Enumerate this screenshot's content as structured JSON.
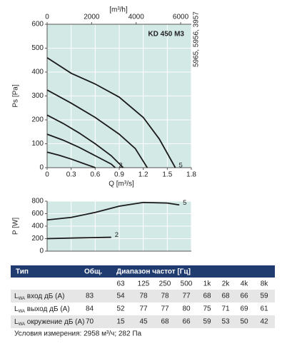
{
  "chart_data": [
    {
      "type": "line",
      "title": "KD 450 M3",
      "note": "5965, 5956, 3957",
      "xlabel": "Q [m³/s]",
      "ylabel": "Ps [Pa]",
      "x2label": "[m³/h]",
      "xlim": [
        0,
        1.8
      ],
      "xticks": [
        0,
        0.3,
        0.6,
        0.9,
        1.2,
        1.5,
        1.8
      ],
      "x2lim": [
        0,
        6480
      ],
      "x2ticks": [
        0,
        2000,
        4000,
        6000
      ],
      "ylim": [
        0,
        600
      ],
      "yticks": [
        0,
        100,
        200,
        300,
        400,
        500,
        600
      ],
      "grid": true,
      "color": "#1a1a1a",
      "background": "#d3e9e6",
      "series": [
        {
          "x": [
            0,
            0.15,
            0.3,
            0.45,
            0.6
          ],
          "values": [
            65,
            52,
            36,
            18,
            0
          ]
        },
        {
          "name": "2",
          "x": [
            0,
            0.2,
            0.4,
            0.6,
            0.8,
            0.85
          ],
          "values": [
            140,
            115,
            85,
            50,
            15,
            0
          ]
        },
        {
          "x": [
            0,
            0.2,
            0.4,
            0.6,
            0.8,
            0.95
          ],
          "values": [
            220,
            185,
            145,
            100,
            50,
            0
          ]
        },
        {
          "x": [
            0,
            0.3,
            0.6,
            0.9,
            1.1,
            1.25
          ],
          "values": [
            325,
            270,
            210,
            140,
            80,
            0
          ]
        },
        {
          "name": "5",
          "x": [
            0,
            0.3,
            0.6,
            0.9,
            1.2,
            1.4,
            1.6
          ],
          "values": [
            460,
            395,
            350,
            295,
            210,
            120,
            0
          ]
        }
      ]
    },
    {
      "type": "line",
      "ylabel": "P [W]",
      "xlim": [
        0,
        1.8
      ],
      "ylim": [
        0,
        800
      ],
      "yticks": [
        0,
        200,
        400,
        600,
        800
      ],
      "grid": true,
      "color": "#1a1a1a",
      "background": "#d3e9e6",
      "series": [
        {
          "name": "2",
          "x": [
            0,
            0.4,
            0.8
          ],
          "values": [
            200,
            212,
            222
          ]
        },
        {
          "name": "5",
          "x": [
            0,
            0.3,
            0.6,
            0.9,
            1.2,
            1.5,
            1.65
          ],
          "values": [
            500,
            540,
            620,
            720,
            780,
            770,
            740
          ]
        }
      ]
    }
  ],
  "table": {
    "header": [
      "Тип",
      "Общ.",
      "Диапазон частот [Гц]"
    ],
    "bands": [
      "63",
      "125",
      "250",
      "500",
      "1k",
      "2k",
      "4k",
      "8k"
    ],
    "rows": [
      {
        "label": {
          "main": "L",
          "sub": "WA",
          "rest": " вход дБ (A)"
        },
        "values": [
          83,
          54,
          78,
          78,
          77,
          68,
          68,
          66,
          59
        ]
      },
      {
        "label": {
          "main": "L",
          "sub": "WA",
          "rest": " выход дБ (A)"
        },
        "values": [
          84,
          52,
          77,
          77,
          80,
          75,
          71,
          69,
          61
        ]
      },
      {
        "label": {
          "main": "L",
          "sub": "WA",
          "rest": " окружение дБ (A)"
        },
        "values": [
          70,
          15,
          45,
          68,
          66,
          59,
          53,
          50,
          42
        ]
      }
    ],
    "footer": "Условия измерения: 2958 м³/ч; 282 Па"
  }
}
